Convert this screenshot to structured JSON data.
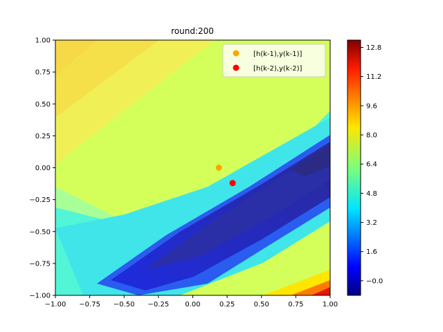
{
  "chart_data": {
    "type": "contour",
    "title": "round:200",
    "xlabel": "",
    "ylabel": "",
    "xlim": [
      -1.0,
      1.0
    ],
    "ylim": [
      -1.0,
      1.0
    ],
    "x_ticks": [
      "−1.00",
      "−0.75",
      "−0.50",
      "−0.25",
      "0.00",
      "0.25",
      "0.50",
      "0.75",
      "1.00"
    ],
    "y_ticks": [
      "−1.00",
      "−0.75",
      "−0.50",
      "−0.25",
      "0.00",
      "0.25",
      "0.50",
      "0.75",
      "1.00"
    ],
    "colorbar": {
      "colormap": "jet",
      "range": [
        -0.8,
        13.2
      ],
      "ticks": [
        "−0.0",
        "1.6",
        "3.2",
        "4.8",
        "6.4",
        "8.0",
        "9.6",
        "11.2",
        "12.8"
      ]
    },
    "legend_position": "top-right",
    "series": [
      {
        "name": "[h(k-1),y(k-1)]",
        "color": "#ffa500",
        "points": [
          [
            0.19,
            0.0
          ]
        ]
      },
      {
        "name": "[h(k-2),y(k-2)]",
        "color": "#ff0000",
        "points": [
          [
            0.29,
            -0.12
          ]
        ]
      }
    ]
  }
}
